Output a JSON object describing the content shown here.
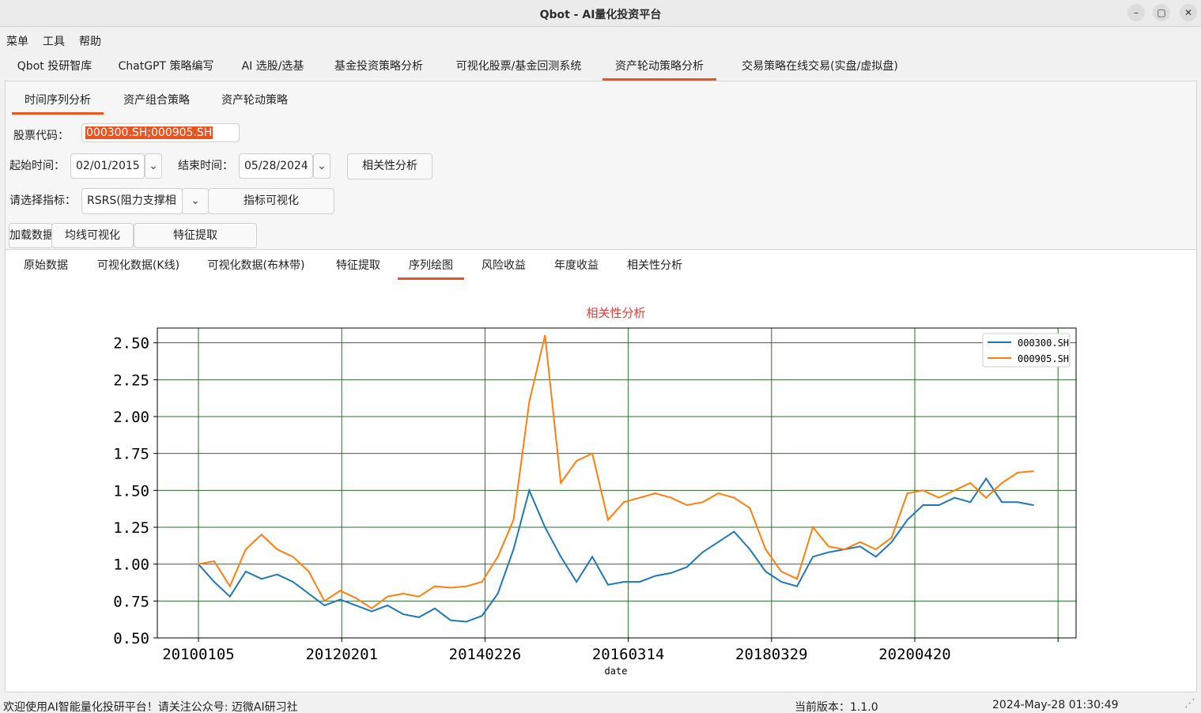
{
  "window": {
    "title": "Qbot - AI量化投资平台"
  },
  "menu": [
    "菜单",
    "工具",
    "帮助"
  ],
  "main_tabs": [
    "Qbot 投研智库",
    "ChatGPT 策略编写",
    "AI 选股/选基",
    "基金投资策略分析",
    "可视化股票/基金回测系统",
    "资产轮动策略分析",
    "交易策略在线交易(实盘/虚拟盘)"
  ],
  "sub_tabs": [
    "时间序列分析",
    "资产组合策略",
    "资产轮动策略"
  ],
  "form": {
    "stock_code_label": "股票代码：",
    "stock_code_value": "000300.SH;000905.SH",
    "start_label": "起始时间：",
    "start_value": "02/01/2015",
    "end_label": "结束时间：",
    "end_value": "05/28/2024",
    "corr_button": "相关性分析",
    "indicator_label": "请选择指标：",
    "indicator_value": "RSRS(阻力支撑相",
    "indicator_viz_button": "指标可视化",
    "load_button": "加载数据",
    "ma_button": "均线可视化",
    "feature_button": "特征提取"
  },
  "chart_tabs": [
    "原始数据",
    "可视化数据(K线)",
    "可视化数据(布林带)",
    "特征提取",
    "序列绘图",
    "风险收益",
    "年度收益",
    "相关性分析"
  ],
  "chart_data": {
    "type": "line",
    "title": "相关性分析",
    "xlabel": "date",
    "ylabel": "",
    "ylim": [
      0.5,
      2.6
    ],
    "yticks": [
      "0.50",
      "0.75",
      "1.00",
      "1.25",
      "1.50",
      "1.75",
      "2.00",
      "2.25",
      "2.50"
    ],
    "xticks": [
      "20100105",
      "20120201",
      "20140226",
      "20160314",
      "20180329",
      "20200420"
    ],
    "grid": true,
    "legend_position": "top-right",
    "x": [
      "2010-01",
      "2010-04",
      "2010-07",
      "2010-10",
      "2011-01",
      "2011-04",
      "2011-07",
      "2011-10",
      "2012-01",
      "2012-04",
      "2012-07",
      "2012-10",
      "2013-01",
      "2013-04",
      "2013-07",
      "2013-10",
      "2014-01",
      "2014-04",
      "2014-07",
      "2014-10",
      "2015-01",
      "2015-04",
      "2015-06",
      "2015-07",
      "2015-09",
      "2015-12",
      "2016-01",
      "2016-04",
      "2016-07",
      "2016-10",
      "2017-01",
      "2017-04",
      "2017-07",
      "2017-10",
      "2018-01",
      "2018-04",
      "2018-07",
      "2018-10",
      "2019-01",
      "2019-04",
      "2019-07",
      "2019-10",
      "2020-01",
      "2020-04",
      "2020-07",
      "2020-10",
      "2021-01",
      "2021-04",
      "2021-07",
      "2021-10",
      "2022-01",
      "2022-04",
      "2022-07",
      "2022-10"
    ],
    "series": [
      {
        "name": "000300.SH",
        "color": "#1f77b4",
        "values": [
          1.0,
          0.88,
          0.78,
          0.95,
          0.9,
          0.93,
          0.88,
          0.8,
          0.72,
          0.76,
          0.72,
          0.68,
          0.72,
          0.66,
          0.64,
          0.7,
          0.62,
          0.61,
          0.65,
          0.8,
          1.1,
          1.5,
          1.25,
          1.05,
          0.88,
          1.05,
          0.86,
          0.88,
          0.88,
          0.92,
          0.94,
          0.98,
          1.08,
          1.15,
          1.22,
          1.1,
          0.95,
          0.88,
          0.85,
          1.05,
          1.08,
          1.1,
          1.12,
          1.05,
          1.15,
          1.3,
          1.4,
          1.4,
          1.45,
          1.42,
          1.58,
          1.42,
          1.42,
          1.4
        ]
      },
      {
        "name": "000905.SH",
        "color": "#ff7f0e",
        "values": [
          1.0,
          1.02,
          0.85,
          1.1,
          1.2,
          1.1,
          1.05,
          0.95,
          0.75,
          0.82,
          0.77,
          0.7,
          0.78,
          0.8,
          0.78,
          0.85,
          0.84,
          0.85,
          0.88,
          1.05,
          1.3,
          2.1,
          2.55,
          1.55,
          1.7,
          1.75,
          1.3,
          1.42,
          1.45,
          1.48,
          1.45,
          1.4,
          1.42,
          1.48,
          1.45,
          1.38,
          1.1,
          0.95,
          0.9,
          1.25,
          1.12,
          1.1,
          1.15,
          1.1,
          1.18,
          1.48,
          1.5,
          1.45,
          1.5,
          1.55,
          1.45,
          1.55,
          1.62,
          1.63
        ]
      }
    ]
  },
  "status": {
    "welcome": "欢迎使用AI智能量化投研平台！请关注公众号: 迈微AI研习社",
    "version": "当前版本：1.1.0",
    "datetime": "2024-May-28 01:30:49"
  }
}
